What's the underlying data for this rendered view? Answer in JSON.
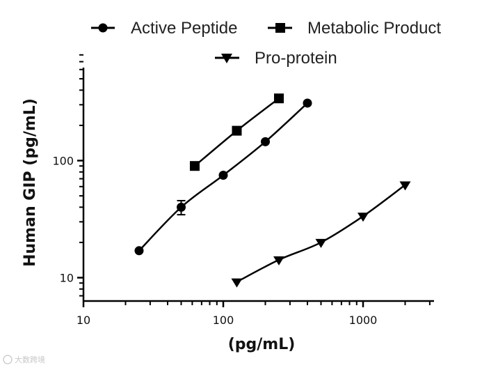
{
  "chart_data": {
    "type": "scatter",
    "title": "",
    "xlabel": "(pg/mL)",
    "ylabel": "Human GIP (pg/mL)",
    "xscale": "log",
    "yscale": "log",
    "xlim": [
      10,
      3200
    ],
    "ylim": [
      6.5,
      850
    ],
    "x_ticks": [
      10,
      100,
      1000
    ],
    "x_tick_labels": [
      "10",
      "100",
      "1000"
    ],
    "y_ticks": [
      10,
      100
    ],
    "y_tick_labels": [
      "10",
      "100"
    ],
    "legend_position": "top",
    "series": [
      {
        "name": "Active Peptide",
        "marker": "circle",
        "x": [
          25,
          50,
          100,
          200,
          400
        ],
        "y": [
          17,
          40,
          75,
          145,
          310
        ],
        "err": [
          0,
          5.5,
          0,
          0,
          0
        ]
      },
      {
        "name": "Metabolic Product",
        "marker": "square",
        "x": [
          62.5,
          125,
          250
        ],
        "y": [
          90,
          180,
          340
        ],
        "err": [
          0,
          0,
          0
        ]
      },
      {
        "name": "Pro-protein",
        "marker": "triangle-down",
        "x": [
          125,
          250,
          500,
          1000,
          2000
        ],
        "y": [
          9.2,
          14.2,
          20,
          33.5,
          62
        ],
        "err": [
          0,
          0,
          0,
          0,
          0
        ]
      }
    ]
  },
  "watermark": "大数跨境",
  "colors": {
    "ink": "#000000",
    "text": "#222222"
  }
}
